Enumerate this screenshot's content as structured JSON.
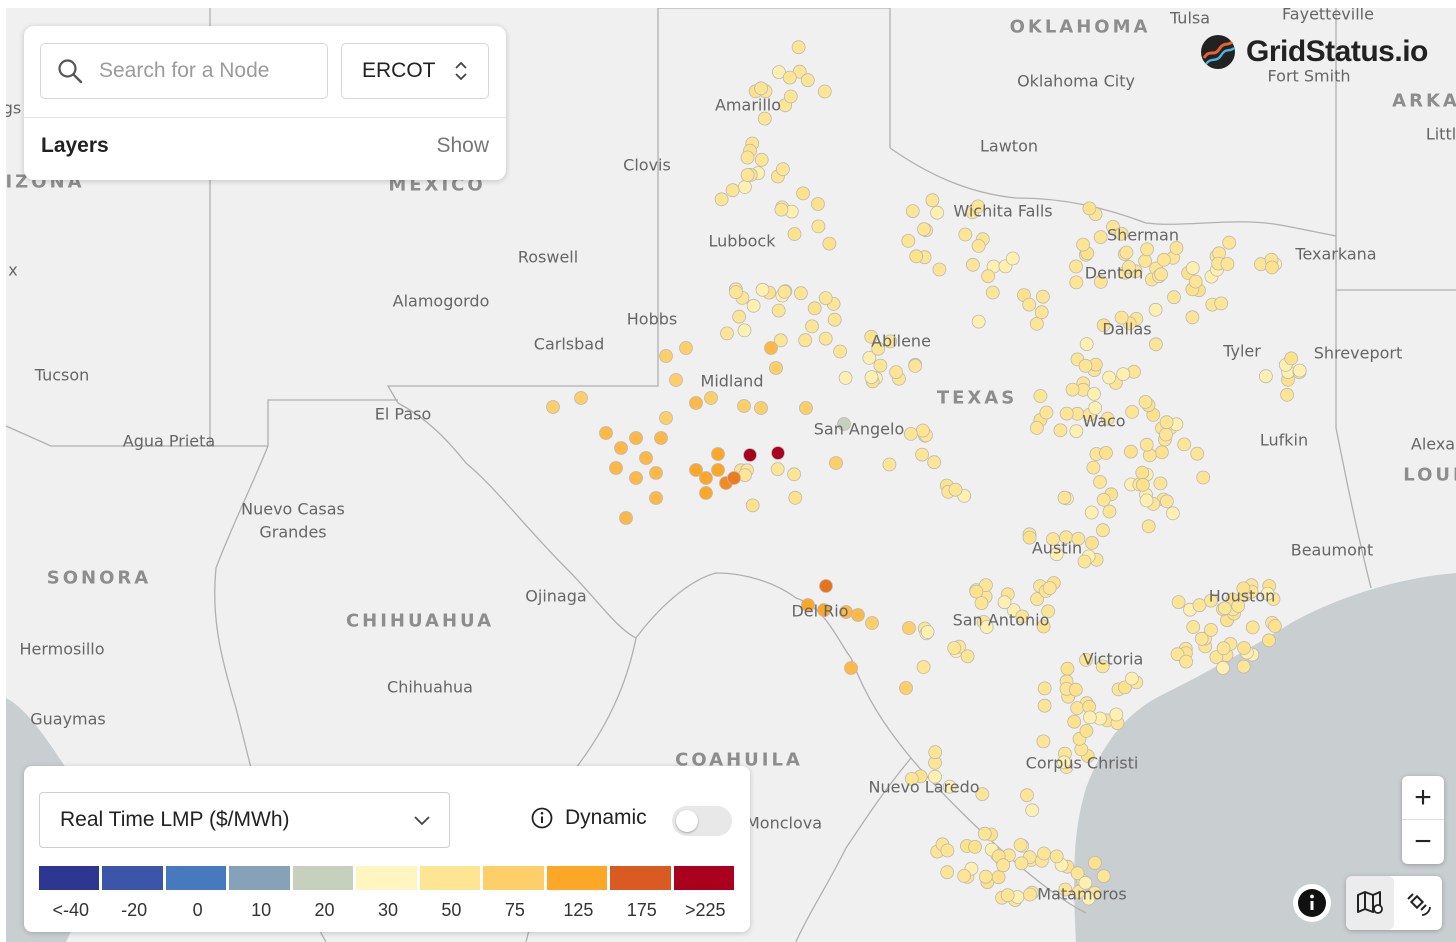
{
  "search": {
    "placeholder": "Search for a Node"
  },
  "iso": {
    "selected": "ERCOT"
  },
  "layers": {
    "label": "Layers",
    "show_label": "Show"
  },
  "brand": {
    "name": "GridStatus.io",
    "logo_icon": "gridstatus-logo-icon"
  },
  "metric": {
    "selected": "Real Time LMP ($/MWh)"
  },
  "dynamic": {
    "label": "Dynamic",
    "enabled": false
  },
  "legend": {
    "bins": [
      {
        "label": "<-40",
        "color": "#2d3791"
      },
      {
        "label": "-20",
        "color": "#3b55a8"
      },
      {
        "label": "0",
        "color": "#4679be"
      },
      {
        "label": "10",
        "color": "#85a2b8"
      },
      {
        "label": "20",
        "color": "#c7d0bc"
      },
      {
        "label": "30",
        "color": "#fff5c0"
      },
      {
        "label": "50",
        "color": "#fee594"
      },
      {
        "label": "75",
        "color": "#fecf68"
      },
      {
        "label": "125",
        "color": "#fda729"
      },
      {
        "label": "175",
        "color": "#da5b21"
      },
      {
        "label": ">225",
        "color": "#a8001d"
      }
    ]
  },
  "controls": {
    "zoom_in": "+",
    "zoom_out": "−"
  },
  "places": [
    {
      "name": "OKLAHOMA",
      "big": true
    },
    {
      "name": "Tulsa"
    },
    {
      "name": "Fayetteville"
    },
    {
      "name": "Oklahoma City"
    },
    {
      "name": "Fort Smith"
    },
    {
      "name": "ARKA",
      "big": true
    },
    {
      "name": "Littl"
    },
    {
      "name": "Amarillo"
    },
    {
      "name": "Clovis"
    },
    {
      "name": "Lawton"
    },
    {
      "name": "IZONA",
      "big": true
    },
    {
      "name": "MEXICO",
      "big": true
    },
    {
      "name": "Wichita Falls"
    },
    {
      "name": "Sherman"
    },
    {
      "name": "Texarkana"
    },
    {
      "name": "Lubbock"
    },
    {
      "name": "Roswell"
    },
    {
      "name": "Denton"
    },
    {
      "name": "Alamogordo"
    },
    {
      "name": "Hobbs"
    },
    {
      "name": "Dallas"
    },
    {
      "name": "Carlsbad"
    },
    {
      "name": "Abilene"
    },
    {
      "name": "Tyler"
    },
    {
      "name": "Shreveport"
    },
    {
      "name": "Tucson"
    },
    {
      "name": "Midland"
    },
    {
      "name": "TEXAS",
      "big": true
    },
    {
      "name": "El Paso"
    },
    {
      "name": "Waco"
    },
    {
      "name": "Agua Prieta"
    },
    {
      "name": "San Angelo"
    },
    {
      "name": "Lufkin"
    },
    {
      "name": "Alexa"
    },
    {
      "name": "LOUI",
      "big": true
    },
    {
      "name": "Nuevo Casas"
    },
    {
      "name": "Grandes"
    },
    {
      "name": "Austin"
    },
    {
      "name": "Beaumont"
    },
    {
      "name": "SONORA",
      "big": true
    },
    {
      "name": "Ojinaga"
    },
    {
      "name": "Houston"
    },
    {
      "name": "Del Rio"
    },
    {
      "name": "CHIHUAHUA",
      "big": true
    },
    {
      "name": "San Antonio"
    },
    {
      "name": "Hermosillo"
    },
    {
      "name": "Victoria"
    },
    {
      "name": "Chihuahua"
    },
    {
      "name": "Guaymas"
    },
    {
      "name": "COAHUILA",
      "big": true
    },
    {
      "name": "Corpus Christi"
    },
    {
      "name": "Nuevo Laredo"
    },
    {
      "name": "Monclova"
    },
    {
      "name": "Matamoros"
    },
    {
      "name": "x"
    },
    {
      "name": "gs"
    }
  ]
}
